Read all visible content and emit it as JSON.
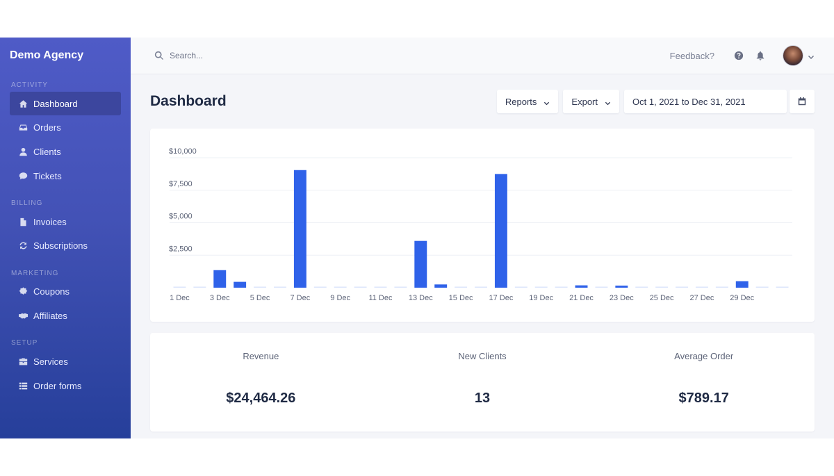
{
  "sidebar": {
    "brand": "Demo Agency",
    "sections": [
      {
        "label": "ACTIVITY",
        "items": [
          {
            "label": "Dashboard",
            "icon": "home-icon",
            "active": true
          },
          {
            "label": "Orders",
            "icon": "inbox-icon"
          },
          {
            "label": "Clients",
            "icon": "user-icon"
          },
          {
            "label": "Tickets",
            "icon": "chat-icon"
          }
        ]
      },
      {
        "label": "BILLING",
        "items": [
          {
            "label": "Invoices",
            "icon": "file-icon"
          },
          {
            "label": "Subscriptions",
            "icon": "refresh-icon"
          }
        ]
      },
      {
        "label": "MARKETING",
        "items": [
          {
            "label": "Coupons",
            "icon": "badge-icon"
          },
          {
            "label": "Affiliates",
            "icon": "handshake-icon"
          }
        ]
      },
      {
        "label": "SETUP",
        "items": [
          {
            "label": "Services",
            "icon": "briefcase-icon"
          },
          {
            "label": "Order forms",
            "icon": "list-icon"
          }
        ]
      }
    ]
  },
  "topbar": {
    "search_placeholder": "Search...",
    "feedback": "Feedback?"
  },
  "page": {
    "title": "Dashboard",
    "reports_label": "Reports",
    "export_label": "Export",
    "date_range": "Oct 1, 2021 to Dec 31, 2021"
  },
  "chart_data": {
    "type": "bar",
    "categories": [
      "1 Dec",
      "2 Dec",
      "3 Dec",
      "4 Dec",
      "5 Dec",
      "6 Dec",
      "7 Dec",
      "8 Dec",
      "9 Dec",
      "10 Dec",
      "11 Dec",
      "12 Dec",
      "13 Dec",
      "14 Dec",
      "15 Dec",
      "16 Dec",
      "17 Dec",
      "18 Dec",
      "19 Dec",
      "20 Dec",
      "21 Dec",
      "22 Dec",
      "23 Dec",
      "24 Dec",
      "25 Dec",
      "26 Dec",
      "27 Dec",
      "28 Dec",
      "29 Dec",
      "30 Dec",
      "31 Dec"
    ],
    "x_tick_labels": [
      "1 Dec",
      "3 Dec",
      "5 Dec",
      "7 Dec",
      "9 Dec",
      "11 Dec",
      "13 Dec",
      "15 Dec",
      "17 Dec",
      "19 Dec",
      "21 Dec",
      "23 Dec",
      "25 Dec",
      "27 Dec",
      "29 Dec"
    ],
    "values": [
      0,
      0,
      1350,
      450,
      0,
      0,
      9050,
      0,
      0,
      0,
      0,
      0,
      3600,
      250,
      0,
      0,
      8750,
      0,
      0,
      0,
      180,
      0,
      160,
      0,
      0,
      0,
      0,
      0,
      500,
      0,
      0
    ],
    "ylim": [
      0,
      10000
    ],
    "y_ticks": [
      2500,
      5000,
      7500,
      10000
    ],
    "y_tick_labels": [
      "$2,500",
      "$5,000",
      "$7,500",
      "$10,000"
    ],
    "bar_color": "#2f62e9",
    "zero_bar_color": "#dce5fb",
    "grid": true
  },
  "stats": [
    {
      "label": "Revenue",
      "value": "$24,464.26"
    },
    {
      "label": "New Clients",
      "value": "13"
    },
    {
      "label": "Average Order",
      "value": "$789.17"
    }
  ]
}
